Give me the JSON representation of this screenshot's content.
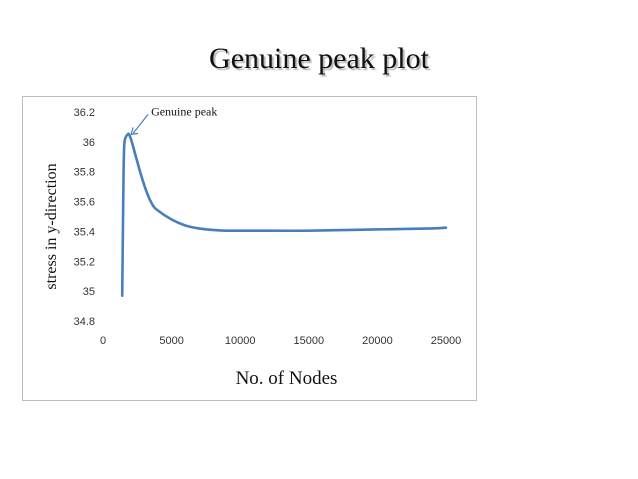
{
  "slide": {
    "title": "Genuine peak plot"
  },
  "chart_data": {
    "type": "line",
    "title": "",
    "xlabel": "No. of Nodes",
    "ylabel": "stress in y-direction",
    "xlim": [
      0,
      25000
    ],
    "ylim": [
      34.8,
      36.2
    ],
    "x_ticks": [
      0,
      5000,
      10000,
      15000,
      20000,
      25000
    ],
    "y_ticks": [
      34.8,
      35,
      35.2,
      35.4,
      35.6,
      35.8,
      36,
      36.2
    ],
    "y_tick_labels": [
      "34.8",
      "35",
      "35.2",
      "35.4",
      "35.6",
      "35.8",
      "36",
      "36.2"
    ],
    "grid": false,
    "legend": false,
    "line_color": "#4a7ebb",
    "series": [
      {
        "x": [
          1400,
          1450,
          1500,
          1550,
          1650,
          1800,
          1900,
          2100,
          2400,
          2800,
          3200,
          3600,
          4000,
          5000,
          6000,
          7000,
          8000,
          9000,
          10000,
          12000,
          15000,
          18000,
          21000,
          24000,
          25000
        ],
        "y": [
          34.97,
          35.4,
          35.8,
          35.98,
          36.03,
          36.05,
          36.05,
          36.0,
          35.9,
          35.77,
          35.66,
          35.58,
          35.54,
          35.48,
          35.44,
          35.42,
          35.41,
          35.405,
          35.405,
          35.405,
          35.405,
          35.41,
          35.415,
          35.42,
          35.425
        ]
      }
    ],
    "annotations": [
      {
        "text": "Genuine peak",
        "x": 1900,
        "y": 36.05
      }
    ]
  }
}
